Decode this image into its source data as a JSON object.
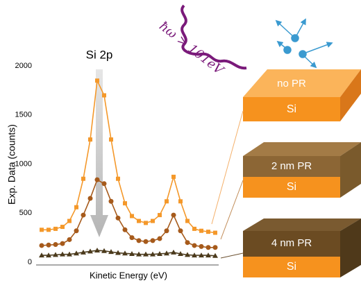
{
  "chart_data": {
    "type": "line",
    "ylabel": "Exp. Data (counts)",
    "xlabel": "Kinetic Energy (eV)",
    "annotation_peak": "Si 2p",
    "annotation_photon": "ħω > 101eV",
    "substrate": "Si",
    "categories": [
      null,
      null,
      null,
      null,
      null,
      null,
      null,
      null,
      null,
      null,
      null,
      null,
      null,
      null,
      null,
      null,
      null,
      null,
      null,
      null,
      null,
      null,
      null,
      null,
      null,
      null
    ],
    "ylim": [
      0,
      2000
    ],
    "yticks": [
      0,
      500,
      1000,
      1500,
      2000
    ],
    "series": [
      {
        "name": "no PR",
        "color": "#f4982a",
        "marker": "square",
        "values": [
          330,
          330,
          340,
          360,
          420,
          560,
          850,
          1250,
          1850,
          1700,
          1250,
          850,
          600,
          470,
          420,
          400,
          420,
          480,
          620,
          870,
          620,
          420,
          340,
          320,
          310,
          300
        ]
      },
      {
        "name": "2 nm PR",
        "color": "#a65a1b",
        "marker": "circle",
        "values": [
          170,
          175,
          180,
          190,
          230,
          320,
          480,
          650,
          840,
          800,
          620,
          450,
          330,
          250,
          220,
          210,
          220,
          240,
          320,
          480,
          320,
          200,
          170,
          160,
          150,
          150
        ]
      },
      {
        "name": "4 nm PR",
        "color": "#4b3a1c",
        "marker": "triangle",
        "values": [
          70,
          70,
          75,
          80,
          80,
          90,
          100,
          110,
          120,
          115,
          105,
          95,
          90,
          85,
          80,
          80,
          80,
          85,
          90,
          100,
          85,
          75,
          70,
          70,
          70,
          65
        ]
      }
    ]
  }
}
